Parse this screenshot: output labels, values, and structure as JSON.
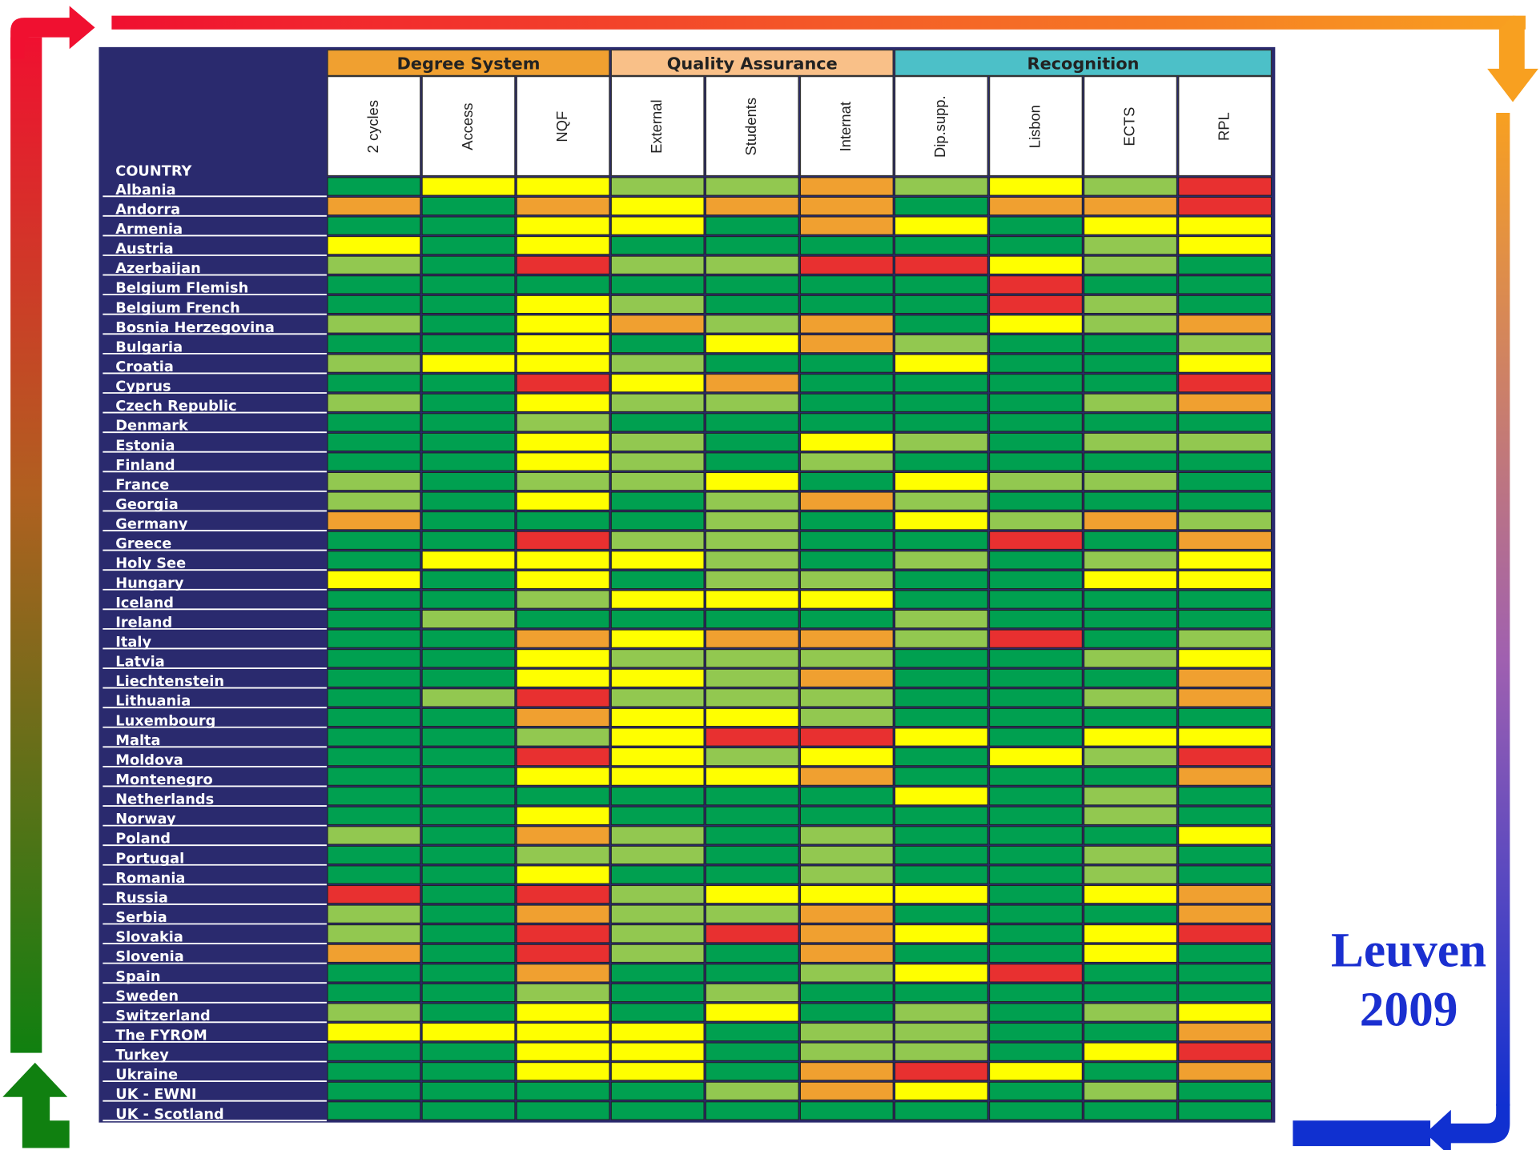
{
  "header": {
    "line1": "Leuven",
    "line2": "2009"
  },
  "table": {
    "corner": "COUNTRY",
    "groups": [
      {
        "label": "Degree System",
        "span": 3,
        "color": "#f0a030"
      },
      {
        "label": "Quality  Assurance",
        "span": 3,
        "color": "#f9c088"
      },
      {
        "label": "Recognition",
        "span": 4,
        "color": "#4cc0c8"
      }
    ],
    "columns": [
      "2 cycles",
      "Access",
      "NQF",
      "External",
      "Students",
      "Internat",
      "Dip.supp.",
      "Lisbon",
      "ECTS",
      "RPL"
    ],
    "palette": {
      "G": "#00a050",
      "L": "#92c850",
      "Y": "#ffff00",
      "O": "#f0a030",
      "R": "#e83030"
    },
    "rows": [
      {
        "country": "Albania",
        "cells": [
          "G",
          "Y",
          "Y",
          "L",
          "L",
          "O",
          "L",
          "Y",
          "L",
          "R"
        ]
      },
      {
        "country": "Andorra",
        "cells": [
          "O",
          "G",
          "O",
          "Y",
          "O",
          "O",
          "G",
          "O",
          "O",
          "R"
        ]
      },
      {
        "country": "Armenia",
        "cells": [
          "G",
          "G",
          "Y",
          "Y",
          "G",
          "O",
          "Y",
          "G",
          "Y",
          "Y"
        ]
      },
      {
        "country": "Austria",
        "cells": [
          "Y",
          "G",
          "Y",
          "G",
          "G",
          "G",
          "G",
          "G",
          "L",
          "Y"
        ]
      },
      {
        "country": "Azerbaijan",
        "cells": [
          "L",
          "G",
          "R",
          "L",
          "L",
          "R",
          "R",
          "Y",
          "L",
          "G"
        ]
      },
      {
        "country": "Belgium Flemish",
        "cells": [
          "G",
          "G",
          "G",
          "G",
          "G",
          "G",
          "G",
          "R",
          "G",
          "G"
        ]
      },
      {
        "country": "Belgium French",
        "cells": [
          "G",
          "G",
          "Y",
          "L",
          "G",
          "G",
          "G",
          "R",
          "L",
          "G"
        ]
      },
      {
        "country": "Bosnia Herzegovina",
        "cells": [
          "L",
          "G",
          "Y",
          "O",
          "L",
          "O",
          "G",
          "Y",
          "L",
          "O"
        ]
      },
      {
        "country": "Bulgaria",
        "cells": [
          "G",
          "G",
          "Y",
          "G",
          "Y",
          "O",
          "L",
          "G",
          "G",
          "L"
        ]
      },
      {
        "country": "Croatia",
        "cells": [
          "L",
          "Y",
          "Y",
          "L",
          "G",
          "G",
          "Y",
          "G",
          "G",
          "Y"
        ]
      },
      {
        "country": "Cyprus",
        "cells": [
          "G",
          "G",
          "R",
          "Y",
          "O",
          "G",
          "G",
          "G",
          "G",
          "R"
        ]
      },
      {
        "country": "Czech Republic",
        "cells": [
          "L",
          "G",
          "Y",
          "L",
          "L",
          "G",
          "G",
          "G",
          "L",
          "O"
        ]
      },
      {
        "country": "Denmark",
        "cells": [
          "G",
          "G",
          "L",
          "G",
          "G",
          "G",
          "G",
          "G",
          "G",
          "G"
        ]
      },
      {
        "country": "Estonia",
        "cells": [
          "G",
          "G",
          "Y",
          "L",
          "G",
          "Y",
          "L",
          "G",
          "L",
          "L"
        ]
      },
      {
        "country": "Finland",
        "cells": [
          "G",
          "G",
          "Y",
          "L",
          "G",
          "L",
          "G",
          "G",
          "G",
          "G"
        ]
      },
      {
        "country": "France",
        "cells": [
          "L",
          "G",
          "L",
          "L",
          "Y",
          "G",
          "Y",
          "L",
          "L",
          "G"
        ]
      },
      {
        "country": "Georgia",
        "cells": [
          "L",
          "G",
          "Y",
          "G",
          "L",
          "O",
          "L",
          "G",
          "G",
          "G"
        ]
      },
      {
        "country": "Germany",
        "cells": [
          "O",
          "G",
          "G",
          "G",
          "L",
          "G",
          "Y",
          "L",
          "O",
          "L"
        ]
      },
      {
        "country": "Greece",
        "cells": [
          "G",
          "G",
          "R",
          "L",
          "L",
          "G",
          "G",
          "R",
          "G",
          "O"
        ]
      },
      {
        "country": "Holy See",
        "cells": [
          "G",
          "Y",
          "Y",
          "Y",
          "L",
          "G",
          "L",
          "G",
          "L",
          "Y"
        ]
      },
      {
        "country": "Hungary",
        "cells": [
          "Y",
          "G",
          "Y",
          "G",
          "L",
          "L",
          "G",
          "G",
          "Y",
          "Y"
        ]
      },
      {
        "country": "Iceland",
        "cells": [
          "G",
          "G",
          "L",
          "Y",
          "Y",
          "Y",
          "G",
          "G",
          "G",
          "G"
        ]
      },
      {
        "country": "Ireland",
        "cells": [
          "G",
          "L",
          "G",
          "G",
          "G",
          "G",
          "L",
          "G",
          "G",
          "G"
        ]
      },
      {
        "country": "Italy",
        "cells": [
          "G",
          "G",
          "O",
          "Y",
          "O",
          "O",
          "L",
          "R",
          "G",
          "L"
        ]
      },
      {
        "country": "Latvia",
        "cells": [
          "G",
          "G",
          "Y",
          "L",
          "L",
          "L",
          "G",
          "G",
          "L",
          "Y"
        ]
      },
      {
        "country": "Liechtenstein",
        "cells": [
          "G",
          "G",
          "Y",
          "Y",
          "L",
          "O",
          "G",
          "G",
          "G",
          "O"
        ]
      },
      {
        "country": "Lithuania",
        "cells": [
          "G",
          "L",
          "R",
          "L",
          "L",
          "L",
          "G",
          "G",
          "L",
          "O"
        ]
      },
      {
        "country": "Luxembourg",
        "cells": [
          "G",
          "G",
          "O",
          "Y",
          "Y",
          "L",
          "G",
          "G",
          "G",
          "G"
        ]
      },
      {
        "country": "Malta",
        "cells": [
          "G",
          "G",
          "L",
          "Y",
          "R",
          "R",
          "Y",
          "G",
          "Y",
          "Y"
        ]
      },
      {
        "country": "Moldova",
        "cells": [
          "G",
          "G",
          "R",
          "Y",
          "L",
          "Y",
          "G",
          "Y",
          "L",
          "R"
        ]
      },
      {
        "country": "Montenegro",
        "cells": [
          "G",
          "G",
          "Y",
          "Y",
          "Y",
          "O",
          "G",
          "G",
          "G",
          "O"
        ]
      },
      {
        "country": "Netherlands",
        "cells": [
          "G",
          "G",
          "G",
          "G",
          "G",
          "G",
          "Y",
          "G",
          "L",
          "G"
        ]
      },
      {
        "country": "Norway",
        "cells": [
          "G",
          "G",
          "Y",
          "G",
          "G",
          "G",
          "G",
          "G",
          "L",
          "G"
        ]
      },
      {
        "country": "Poland",
        "cells": [
          "L",
          "G",
          "O",
          "L",
          "G",
          "L",
          "G",
          "G",
          "G",
          "Y"
        ]
      },
      {
        "country": "Portugal",
        "cells": [
          "G",
          "G",
          "L",
          "L",
          "G",
          "L",
          "G",
          "G",
          "L",
          "G"
        ]
      },
      {
        "country": "Romania",
        "cells": [
          "G",
          "G",
          "Y",
          "G",
          "G",
          "L",
          "G",
          "G",
          "L",
          "G"
        ]
      },
      {
        "country": "Russia",
        "cells": [
          "R",
          "G",
          "R",
          "L",
          "Y",
          "Y",
          "Y",
          "G",
          "Y",
          "O"
        ]
      },
      {
        "country": "Serbia",
        "cells": [
          "L",
          "G",
          "O",
          "L",
          "L",
          "O",
          "G",
          "G",
          "G",
          "O"
        ]
      },
      {
        "country": "Slovakia",
        "cells": [
          "L",
          "G",
          "R",
          "L",
          "R",
          "O",
          "Y",
          "G",
          "Y",
          "R"
        ]
      },
      {
        "country": "Slovenia",
        "cells": [
          "O",
          "G",
          "R",
          "L",
          "G",
          "O",
          "G",
          "G",
          "Y",
          "G"
        ]
      },
      {
        "country": "Spain",
        "cells": [
          "G",
          "G",
          "O",
          "G",
          "G",
          "L",
          "Y",
          "R",
          "G",
          "G"
        ]
      },
      {
        "country": "Sweden",
        "cells": [
          "G",
          "G",
          "L",
          "G",
          "L",
          "G",
          "G",
          "G",
          "G",
          "G"
        ]
      },
      {
        "country": "Switzerland",
        "cells": [
          "L",
          "G",
          "Y",
          "G",
          "Y",
          "G",
          "L",
          "G",
          "L",
          "Y"
        ]
      },
      {
        "country": "The FYROM",
        "cells": [
          "Y",
          "Y",
          "Y",
          "Y",
          "G",
          "L",
          "L",
          "G",
          "G",
          "O"
        ]
      },
      {
        "country": "Turkey",
        "cells": [
          "G",
          "G",
          "Y",
          "Y",
          "G",
          "L",
          "L",
          "G",
          "Y",
          "R"
        ]
      },
      {
        "country": "Ukraine",
        "cells": [
          "G",
          "G",
          "Y",
          "Y",
          "G",
          "O",
          "R",
          "Y",
          "G",
          "O"
        ]
      },
      {
        "country": "UK - EWNI",
        "cells": [
          "G",
          "G",
          "G",
          "G",
          "L",
          "O",
          "Y",
          "G",
          "L",
          "G"
        ]
      },
      {
        "country": "UK - Scotland",
        "cells": [
          "G",
          "G",
          "G",
          "G",
          "G",
          "G",
          "G",
          "G",
          "G",
          "G"
        ]
      }
    ]
  }
}
